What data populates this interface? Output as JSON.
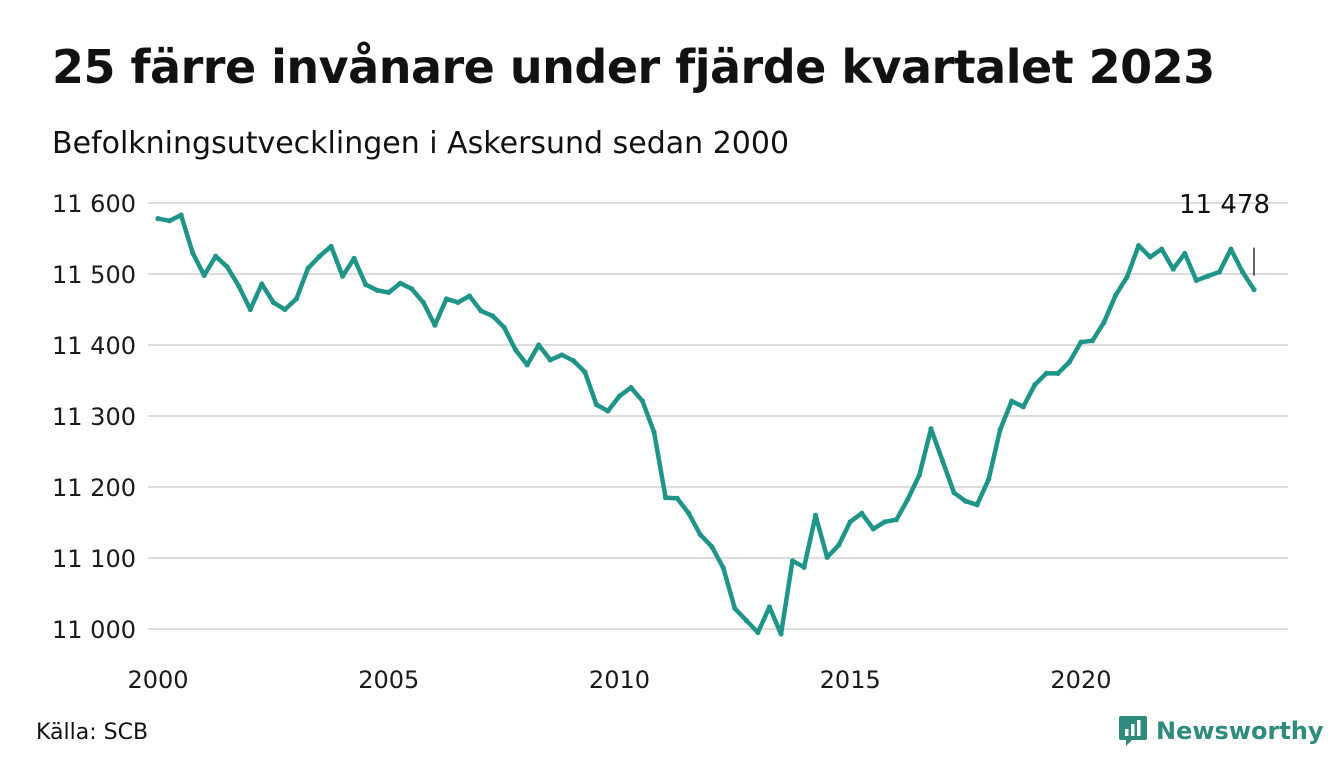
{
  "header": {
    "title": "25 färre invånare under fjärde kvartalet 2023",
    "subtitle": "Befolkningsutvecklingen i Askersund sedan 2000"
  },
  "footer": {
    "source": "Källa: SCB",
    "brand": "Newsworthy",
    "brand_icon": "chart-bubble-icon"
  },
  "colors": {
    "line": "#1f9488",
    "grid": "#dddddd",
    "brand": "#2e8b7e"
  },
  "chart_data": {
    "type": "line",
    "x_start": 2000,
    "x_step": 0.25,
    "x_ticks": [
      2000,
      2005,
      2010,
      2015,
      2020
    ],
    "x_tick_labels": [
      "2000",
      "2005",
      "2010",
      "2015",
      "2020"
    ],
    "ylim": [
      11000,
      11600
    ],
    "y_ticks": [
      11000,
      11100,
      11200,
      11300,
      11400,
      11500,
      11600
    ],
    "y_tick_labels": [
      "11 000",
      "11 100",
      "11 200",
      "11 300",
      "11 400",
      "11 500",
      "11 600"
    ],
    "grid": true,
    "last_value_label": "11 478",
    "series": [
      {
        "values": [
          11578,
          11575,
          11583,
          11530,
          11498,
          11525,
          11510,
          11483,
          11450,
          11486,
          11460,
          11450,
          11465,
          11508,
          11525,
          11539,
          11497,
          11522,
          11485,
          11477,
          11474,
          11487,
          11479,
          11460,
          11428,
          11465,
          11460,
          11469,
          11448,
          11441,
          11425,
          11393,
          11372,
          11400,
          11379,
          11386,
          11378,
          11362,
          11316,
          11307,
          11328,
          11340,
          11321,
          11277,
          11185,
          11184,
          11163,
          11133,
          11116,
          11086,
          11029,
          11012,
          10995,
          11031,
          10993,
          11096,
          11087,
          11160,
          11101,
          11118,
          11151,
          11163,
          11141,
          11151,
          11154,
          11183,
          11217,
          11282,
          11237,
          11192,
          11180,
          11175,
          11211,
          11281,
          11321,
          11313,
          11344,
          11360,
          11360,
          11376,
          11404,
          11406,
          11432,
          11470,
          11496,
          11540,
          11524,
          11535,
          11507,
          11529,
          11491,
          11497,
          11503,
          11535,
          11503,
          11478
        ]
      }
    ]
  }
}
